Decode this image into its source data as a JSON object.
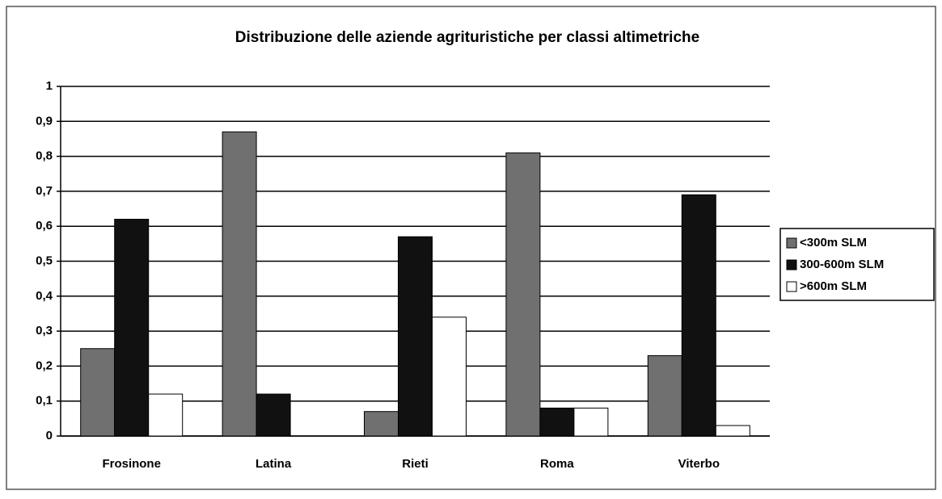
{
  "chart_data": {
    "type": "bar",
    "title": "Distribuzione delle aziende agrituristiche per classi altimetriche",
    "categories": [
      "Frosinone",
      "Latina",
      "Rieti",
      "Roma",
      "Viterbo"
    ],
    "series": [
      {
        "name": "<300m SLM",
        "color": "#707070",
        "values": [
          0.25,
          0.87,
          0.07,
          0.81,
          0.23
        ]
      },
      {
        "name": "300-600m SLM",
        "color": "#111111",
        "values": [
          0.62,
          0.12,
          0.57,
          0.08,
          0.69
        ]
      },
      {
        "name": ">600m SLM",
        "color": "#ffffff",
        "values": [
          0.12,
          0,
          0.34,
          0.08,
          0.03
        ]
      }
    ],
    "ylim": [
      0,
      1
    ],
    "yticks": [
      0,
      {
        "value": 0.1,
        "label": "0,1"
      },
      {
        "value": 0.2,
        "label": "0,2"
      },
      {
        "value": 0.3,
        "label": "0,3"
      },
      {
        "value": 0.4,
        "label": "0,4"
      },
      {
        "value": 0.5,
        "label": "0,5"
      },
      {
        "value": 0.6,
        "label": "0,6"
      },
      {
        "value": 0.7,
        "label": "0,7"
      },
      {
        "value": 0.8,
        "label": "0,8"
      },
      {
        "value": 0.9,
        "label": "0,9"
      },
      1
    ],
    "grid": true,
    "legend": "right"
  }
}
